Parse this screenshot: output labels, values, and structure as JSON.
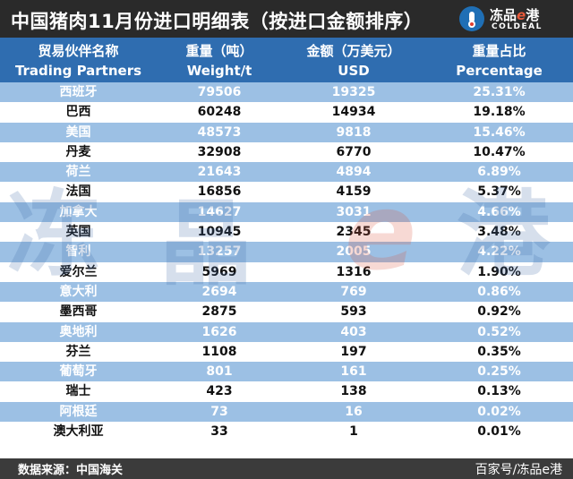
{
  "title": "中国猪肉11月份进口明细表（按进口金额排序）",
  "logo": {
    "name_prefix": "冻品",
    "name_e": "e",
    "name_suffix": "港",
    "english": "COLDEAL",
    "icon": "coldeal-logo-icon",
    "color": "#1f6fb5"
  },
  "columns": [
    {
      "cn": "贸易伙伴名称",
      "en": "Trading Partners"
    },
    {
      "cn": "重量（吨）",
      "en": "Weight/t"
    },
    {
      "cn": "金额（万美元）",
      "en": "USD"
    },
    {
      "cn": "重量占比",
      "en": "Percentage"
    }
  ],
  "rows": [
    [
      "西班牙",
      "79506",
      "19325",
      "25.31%"
    ],
    [
      "巴西",
      "60248",
      "14934",
      "19.18%"
    ],
    [
      "美国",
      "48573",
      "9818",
      "15.46%"
    ],
    [
      "丹麦",
      "32908",
      "6770",
      "10.47%"
    ],
    [
      "荷兰",
      "21643",
      "4894",
      "6.89%"
    ],
    [
      "法国",
      "16856",
      "4159",
      "5.37%"
    ],
    [
      "加拿大",
      "14627",
      "3031",
      "4.66%"
    ],
    [
      "英国",
      "10945",
      "2345",
      "3.48%"
    ],
    [
      "智利",
      "13257",
      "2005",
      "4.22%"
    ],
    [
      "爱尔兰",
      "5969",
      "1316",
      "1.90%"
    ],
    [
      "意大利",
      "2694",
      "769",
      "0.86%"
    ],
    [
      "墨西哥",
      "2875",
      "593",
      "0.92%"
    ],
    [
      "奥地利",
      "1626",
      "403",
      "0.52%"
    ],
    [
      "芬兰",
      "1108",
      "197",
      "0.35%"
    ],
    [
      "葡萄牙",
      "801",
      "161",
      "0.25%"
    ],
    [
      "瑞士",
      "423",
      "138",
      "0.13%"
    ],
    [
      "阿根廷",
      "73",
      "16",
      "0.02%"
    ],
    [
      "澳大利亚",
      "33",
      "1",
      "0.01%"
    ]
  ],
  "watermark": [
    "冻",
    "晶",
    "e",
    "港"
  ],
  "footer": {
    "source": "数据来源：中国海关",
    "credit": "百家号/冻品e港"
  },
  "colors": {
    "header": "#2f6db0",
    "row_light": "#9cc0e4",
    "title_bg": "#2a2a2a"
  }
}
